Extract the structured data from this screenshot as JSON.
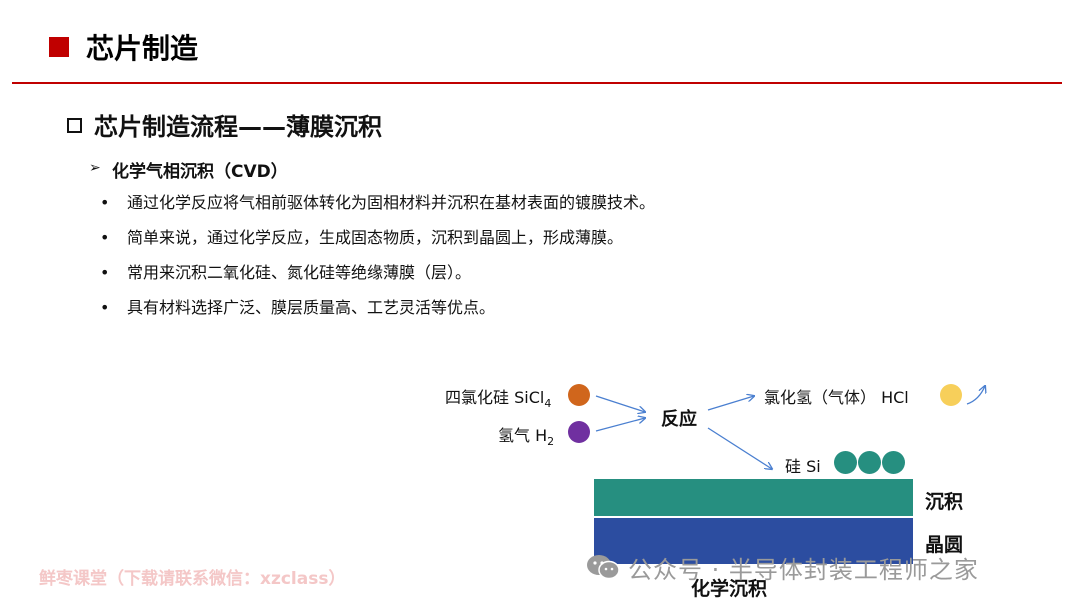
{
  "header": {
    "title": "芯片制造"
  },
  "section": {
    "title": "芯片制造流程——薄膜沉积"
  },
  "subsection": {
    "arrow": "➢",
    "title": "化学气相沉积（CVD）"
  },
  "bullets": [
    {
      "dot": "•",
      "text": "通过化学反应将气相前驱体转化为固相材料并沉积在基材表面的镀膜技术。"
    },
    {
      "dot": "•",
      "text": "简单来说，通过化学反应，生成固态物质，沉积到晶圆上，形成薄膜。"
    },
    {
      "dot": "•",
      "text": "常用来沉积二氧化硅、氮化硅等绝缘薄膜（层）。"
    },
    {
      "dot": "•",
      "text": "具有材料选择广泛、膜层质量高、工艺灵活等优点。"
    }
  ],
  "diagram": {
    "reactant1": {
      "label": "四氯化硅 SiCl",
      "sub": "4",
      "color": "#d0661c"
    },
    "reactant2": {
      "label": "氢气 H",
      "sub": "2",
      "color": "#7030a0"
    },
    "reaction": "反应",
    "byproduct": {
      "label": "氯化氢（气体） HCl",
      "color": "#f7cf5a"
    },
    "product": {
      "label": "硅 Si",
      "color": "#268f80"
    },
    "deposit_label": "沉积",
    "wafer_label": "晶圆",
    "caption": "化学沉积",
    "arrow_color": "#4a7fd0",
    "deposit_color": "#268f80",
    "wafer_color": "#2c4da0"
  },
  "watermarks": {
    "left": "鲜枣课堂（下载请联系微信：xzclass）",
    "right": "公众号 · 半导体封装工程师之家"
  }
}
